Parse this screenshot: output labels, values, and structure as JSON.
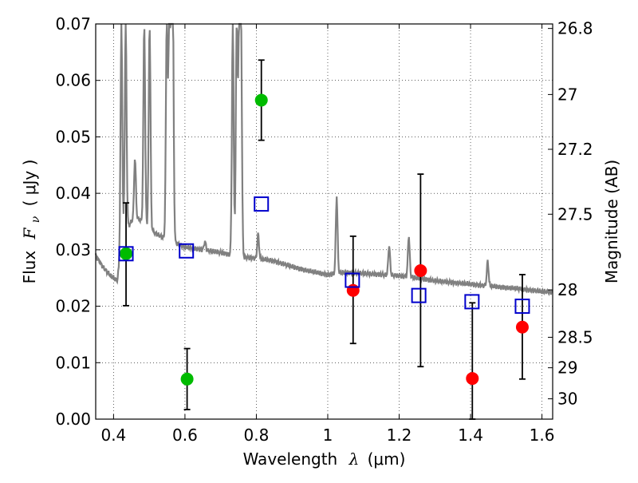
{
  "chart_data": {
    "type": "scatter",
    "xlabel": "Wavelength",
    "xlabel_symbol": "λ",
    "xlabel_unit": "(μm)",
    "ylabel": "Flux",
    "ylabel_symbol": "F",
    "ylabel_subscript": "ν",
    "ylabel_unit": "( μJy )",
    "y2label": "Magnitude (AB)",
    "xlim": [
      0.35,
      1.63
    ],
    "ylim": [
      0.0,
      0.07
    ],
    "grid": true,
    "x_ticks": [
      0.4,
      0.6,
      0.8,
      1.0,
      1.2,
      1.4,
      1.6
    ],
    "x_tick_labels": [
      "0.4",
      "0.6",
      "0.8",
      "1",
      "1.2",
      "1.4",
      "1.6"
    ],
    "y_ticks": [
      0.0,
      0.01,
      0.02,
      0.03,
      0.04,
      0.05,
      0.06,
      0.07
    ],
    "y_tick_labels": [
      "0.00",
      "0.01",
      "0.02",
      "0.03",
      "0.04",
      "0.05",
      "0.06",
      "0.07"
    ],
    "y2_ticks": [
      {
        "label": "26.8",
        "flux": 0.0692
      },
      {
        "label": "27",
        "flux": 0.0575
      },
      {
        "label": "27.2",
        "flux": 0.0478
      },
      {
        "label": "27.5",
        "flux": 0.0363
      },
      {
        "label": "28",
        "flux": 0.0229
      },
      {
        "label": "28.5",
        "flux": 0.0145
      },
      {
        "label": "29",
        "flux": 0.0091
      },
      {
        "label": "30",
        "flux": 0.0036
      }
    ],
    "colors": {
      "green": "#00bb00",
      "red": "#ff0000",
      "blue": "#0000cc",
      "spectrum": "#808080",
      "errorbar": "#000000"
    },
    "series": [
      {
        "marker": "circle",
        "color": "#00bb00",
        "points": [
          {
            "x": 0.435,
            "y": 0.0293,
            "ylo": 0.0201,
            "yhi": 0.0383
          },
          {
            "x": 0.606,
            "y": 0.0071,
            "ylo": 0.0017,
            "yhi": 0.0125
          },
          {
            "x": 0.814,
            "y": 0.0565,
            "ylo": 0.0494,
            "yhi": 0.0636
          }
        ]
      },
      {
        "marker": "circle",
        "color": "#ff0000",
        "points": [
          {
            "x": 1.071,
            "y": 0.0228,
            "ylo": 0.0134,
            "yhi": 0.0324
          },
          {
            "x": 1.26,
            "y": 0.0263,
            "ylo": 0.0093,
            "yhi": 0.0434
          },
          {
            "x": 1.405,
            "y": 0.0072,
            "ylo": 0.0,
            "yhi": 0.0206
          },
          {
            "x": 1.545,
            "y": 0.0163,
            "ylo": 0.0071,
            "yhi": 0.0256
          }
        ]
      },
      {
        "marker": "open-square",
        "color": "#0000cc",
        "points": [
          {
            "x": 0.435,
            "y": 0.0293
          },
          {
            "x": 0.604,
            "y": 0.0298
          },
          {
            "x": 0.814,
            "y": 0.0381
          },
          {
            "x": 1.069,
            "y": 0.0246
          },
          {
            "x": 1.255,
            "y": 0.0219
          },
          {
            "x": 1.404,
            "y": 0.0208
          },
          {
            "x": 1.545,
            "y": 0.02
          }
        ]
      }
    ],
    "spectrum": {
      "color": "#808080",
      "continuum": [
        [
          0.35,
          0.029
        ],
        [
          0.37,
          0.027
        ],
        [
          0.39,
          0.0255
        ],
        [
          0.41,
          0.0245
        ],
        [
          0.42,
          0.029
        ],
        [
          0.43,
          0.033
        ],
        [
          0.44,
          0.034
        ],
        [
          0.45,
          0.035
        ],
        [
          0.46,
          0.0358
        ],
        [
          0.48,
          0.035
        ],
        [
          0.5,
          0.0338
        ],
        [
          0.52,
          0.0328
        ],
        [
          0.55,
          0.0318
        ],
        [
          0.6,
          0.0305
        ],
        [
          0.65,
          0.03
        ],
        [
          0.7,
          0.0295
        ],
        [
          0.75,
          0.0288
        ],
        [
          0.8,
          0.0285
        ],
        [
          0.85,
          0.028
        ],
        [
          0.9,
          0.027
        ],
        [
          0.95,
          0.0262
        ],
        [
          1.0,
          0.0256
        ],
        [
          1.05,
          0.026
        ],
        [
          1.1,
          0.0258
        ],
        [
          1.15,
          0.0256
        ],
        [
          1.2,
          0.0254
        ],
        [
          1.25,
          0.025
        ],
        [
          1.3,
          0.0245
        ],
        [
          1.35,
          0.0242
        ],
        [
          1.4,
          0.0239
        ],
        [
          1.45,
          0.0236
        ],
        [
          1.5,
          0.0233
        ],
        [
          1.55,
          0.023
        ],
        [
          1.6,
          0.0226
        ],
        [
          1.63,
          0.0225
        ]
      ],
      "lines": [
        {
          "x": 0.422,
          "peak": 0.07
        },
        {
          "x": 0.434,
          "peak": 0.07
        },
        {
          "x": 0.46,
          "peak": 0.0463
        },
        {
          "x": 0.486,
          "peak": 0.07
        },
        {
          "x": 0.501,
          "peak": 0.07
        },
        {
          "x": 0.549,
          "peak": 0.07
        },
        {
          "x": 0.556,
          "peak": 0.07
        },
        {
          "x": 0.562,
          "peak": 0.07
        },
        {
          "x": 0.566,
          "peak": 0.07
        },
        {
          "x": 0.656,
          "peak": 0.0315
        },
        {
          "x": 0.734,
          "peak": 0.07
        },
        {
          "x": 0.745,
          "peak": 0.07
        },
        {
          "x": 0.752,
          "peak": 0.07
        },
        {
          "x": 0.757,
          "peak": 0.07
        },
        {
          "x": 0.805,
          "peak": 0.0328
        },
        {
          "x": 1.025,
          "peak": 0.0395
        },
        {
          "x": 1.172,
          "peak": 0.0308
        },
        {
          "x": 1.227,
          "peak": 0.0325
        },
        {
          "x": 1.448,
          "peak": 0.028
        }
      ]
    }
  }
}
